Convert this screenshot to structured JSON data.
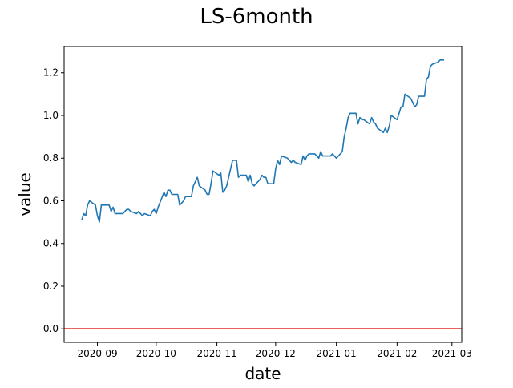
{
  "chart_data": {
    "type": "line",
    "title": "LS-6month",
    "xlabel": "date",
    "ylabel": "value",
    "x_ticks": [
      "2020-09",
      "2020-10",
      "2020-11",
      "2020-12",
      "2021-01",
      "2021-02",
      "2021-03"
    ],
    "y_ticks": [
      "0.0",
      "0.2",
      "0.4",
      "0.6",
      "0.8",
      "1.0",
      "1.2"
    ],
    "xlim": [
      "2020-08-15",
      "2021-03-06"
    ],
    "ylim": [
      -0.063,
      1.323
    ],
    "hline": {
      "y": 0.0,
      "color": "#e00000"
    },
    "series": [
      {
        "color": "#1f77b4",
        "x": [
          "2020-08-24",
          "2020-08-25",
          "2020-08-26",
          "2020-08-27",
          "2020-08-28",
          "2020-08-31",
          "2020-09-01",
          "2020-09-02",
          "2020-09-03",
          "2020-09-04",
          "2020-09-07",
          "2020-09-08",
          "2020-09-09",
          "2020-09-10",
          "2020-09-11",
          "2020-09-14",
          "2020-09-15",
          "2020-09-16",
          "2020-09-17",
          "2020-09-18",
          "2020-09-21",
          "2020-09-22",
          "2020-09-23",
          "2020-09-24",
          "2020-09-25",
          "2020-09-28",
          "2020-09-29",
          "2020-09-30",
          "2020-10-01",
          "2020-10-02",
          "2020-10-05",
          "2020-10-06",
          "2020-10-07",
          "2020-10-08",
          "2020-10-09",
          "2020-10-12",
          "2020-10-13",
          "2020-10-14",
          "2020-10-15",
          "2020-10-16",
          "2020-10-19",
          "2020-10-20",
          "2020-10-21",
          "2020-10-22",
          "2020-10-23",
          "2020-10-26",
          "2020-10-27",
          "2020-10-28",
          "2020-10-29",
          "2020-10-30",
          "2020-11-02",
          "2020-11-03",
          "2020-11-04",
          "2020-11-05",
          "2020-11-06",
          "2020-11-09",
          "2020-11-10",
          "2020-11-11",
          "2020-11-12",
          "2020-11-13",
          "2020-11-16",
          "2020-11-17",
          "2020-11-18",
          "2020-11-19",
          "2020-11-20",
          "2020-11-23",
          "2020-11-24",
          "2020-11-25",
          "2020-11-26",
          "2020-11-27",
          "2020-11-30",
          "2020-12-01",
          "2020-12-02",
          "2020-12-03",
          "2020-12-04",
          "2020-12-07",
          "2020-12-08",
          "2020-12-09",
          "2020-12-10",
          "2020-12-11",
          "2020-12-14",
          "2020-12-15",
          "2020-12-16",
          "2020-12-17",
          "2020-12-18",
          "2020-12-21",
          "2020-12-22",
          "2020-12-23",
          "2020-12-24",
          "2020-12-25",
          "2020-12-28",
          "2020-12-29",
          "2020-12-30",
          "2020-12-31",
          "2021-01-01",
          "2021-01-04",
          "2021-01-05",
          "2021-01-06",
          "2021-01-07",
          "2021-01-08",
          "2021-01-11",
          "2021-01-12",
          "2021-01-13",
          "2021-01-14",
          "2021-01-15",
          "2021-01-18",
          "2021-01-19",
          "2021-01-20",
          "2021-01-21",
          "2021-01-22",
          "2021-01-25",
          "2021-01-26",
          "2021-01-27",
          "2021-01-28",
          "2021-01-29",
          "2021-02-01",
          "2021-02-02",
          "2021-02-03",
          "2021-02-04",
          "2021-02-05",
          "2021-02-08",
          "2021-02-09",
          "2021-02-10",
          "2021-02-11",
          "2021-02-12",
          "2021-02-15",
          "2021-02-16",
          "2021-02-17",
          "2021-02-18",
          "2021-02-19",
          "2021-02-22",
          "2021-02-23",
          "2021-02-24",
          "2021-02-25"
        ],
        "values": [
          0.51,
          0.54,
          0.53,
          0.58,
          0.6,
          0.58,
          0.53,
          0.5,
          0.58,
          0.58,
          0.58,
          0.55,
          0.57,
          0.54,
          0.54,
          0.54,
          0.55,
          0.56,
          0.56,
          0.55,
          0.54,
          0.55,
          0.54,
          0.53,
          0.54,
          0.53,
          0.55,
          0.56,
          0.54,
          0.57,
          0.64,
          0.62,
          0.65,
          0.65,
          0.63,
          0.63,
          0.58,
          0.59,
          0.6,
          0.62,
          0.62,
          0.67,
          0.69,
          0.71,
          0.67,
          0.65,
          0.63,
          0.63,
          0.68,
          0.74,
          0.72,
          0.73,
          0.64,
          0.65,
          0.67,
          0.79,
          0.79,
          0.79,
          0.71,
          0.72,
          0.72,
          0.69,
          0.72,
          0.68,
          0.67,
          0.7,
          0.72,
          0.71,
          0.71,
          0.68,
          0.68,
          0.75,
          0.79,
          0.77,
          0.81,
          0.8,
          0.79,
          0.78,
          0.79,
          0.78,
          0.77,
          0.81,
          0.79,
          0.81,
          0.82,
          0.82,
          0.81,
          0.8,
          0.83,
          0.81,
          0.81,
          0.81,
          0.82,
          0.81,
          0.8,
          0.83,
          0.9,
          0.94,
          0.99,
          1.01,
          1.01,
          0.96,
          0.99,
          0.98,
          0.98,
          0.96,
          0.99,
          0.97,
          0.96,
          0.94,
          0.92,
          0.94,
          0.92,
          0.95,
          1.0,
          0.98,
          1.01,
          1.04,
          1.04,
          1.1,
          1.08,
          1.06,
          1.04,
          1.05,
          1.09,
          1.09,
          1.17,
          1.18,
          1.23,
          1.24,
          1.25,
          1.26,
          1.26,
          1.26
        ]
      }
    ]
  }
}
